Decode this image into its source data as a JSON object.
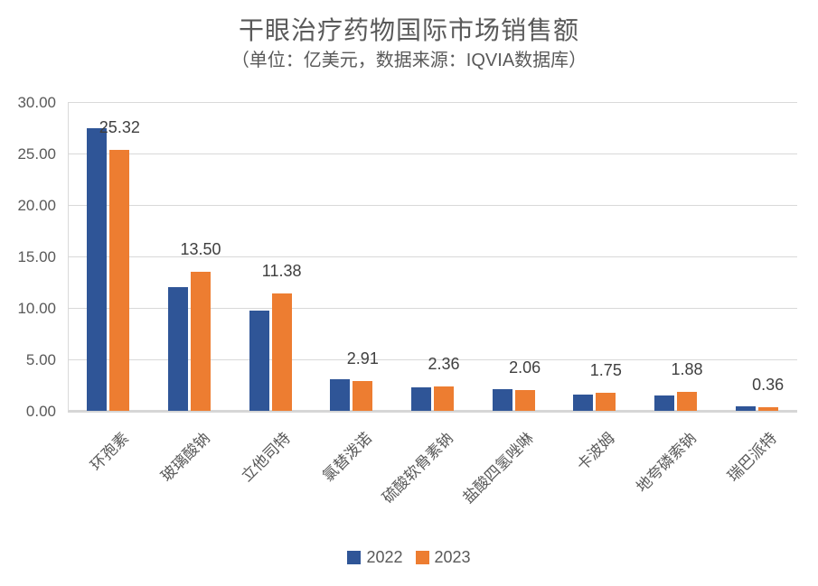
{
  "title": "干眼治疗药物国际市场销售额",
  "subtitle": "（单位：亿美元，数据来源：IQVIA数据库）",
  "colors": {
    "series_2022": "#2f5597",
    "series_2023": "#ed7d31",
    "gridline": "#d9d9d9",
    "text_gray": "#595959",
    "data_label": "#3f3f3f"
  },
  "chart_data": {
    "type": "bar",
    "title": "干眼治疗药物国际市场销售额",
    "subtitle": "（单位：亿美元，数据来源：IQVIA数据库）",
    "categories": [
      "环孢素",
      "玻璃酸钠",
      "立他司特",
      "氯替泼诺",
      "硫酸软骨素钠",
      "盐酸四氢唑啉",
      "卡波姆",
      "地夸磷索钠",
      "瑞巴派特"
    ],
    "series": [
      {
        "name": "2022",
        "color": "#2f5597",
        "values": [
          27.5,
          12.0,
          9.7,
          3.1,
          2.3,
          2.1,
          1.6,
          1.5,
          0.45
        ],
        "labels_shown": false
      },
      {
        "name": "2023",
        "color": "#ed7d31",
        "values": [
          25.32,
          13.5,
          11.38,
          2.91,
          2.36,
          2.06,
          1.75,
          1.88,
          0.36
        ],
        "labels_shown": true,
        "data_labels": [
          "25.32",
          "13.50",
          "11.38",
          "2.91",
          "2.36",
          "2.06",
          "1.75",
          "1.88",
          "0.36"
        ]
      }
    ],
    "ylim": [
      0,
      30
    ],
    "ytick_step": 5,
    "ytick_labels": [
      "0.00",
      "5.00",
      "10.00",
      "15.00",
      "20.00",
      "25.00",
      "30.00"
    ],
    "xlabel": "",
    "ylabel": "",
    "grid": true,
    "legend_position": "bottom"
  },
  "legend": {
    "items": [
      {
        "label": "2022",
        "color": "#2f5597"
      },
      {
        "label": "2023",
        "color": "#ed7d31"
      }
    ]
  }
}
